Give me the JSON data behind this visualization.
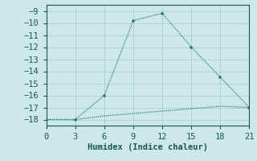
{
  "xlabel": "Humidex (Indice chaleur)",
  "line1_x": [
    0,
    3,
    6,
    9,
    12,
    15,
    18,
    21
  ],
  "line1_y": [
    -18,
    -18,
    -16,
    -9.8,
    -9.2,
    -12,
    -14.5,
    -17
  ],
  "line2_x": [
    0,
    3,
    6,
    9,
    12,
    15,
    18,
    21
  ],
  "line2_y": [
    -18.0,
    -18.0,
    -17.7,
    -17.5,
    -17.3,
    -17.1,
    -16.9,
    -17.0
  ],
  "line_color": "#2e7d6e",
  "bg_color": "#cce8e8",
  "grid_color_major": "#aacfcf",
  "grid_color_minor": "#c8e0e0",
  "text_color": "#1a5555",
  "xlim": [
    0,
    21
  ],
  "ylim": [
    -18.5,
    -8.5
  ],
  "xticks": [
    0,
    3,
    6,
    9,
    12,
    15,
    18,
    21
  ],
  "yticks": [
    -18,
    -17,
    -16,
    -15,
    -14,
    -13,
    -12,
    -11,
    -10,
    -9
  ],
  "markersize": 3.5,
  "linewidth": 0.9,
  "xlabel_fontsize": 7.5,
  "tick_fontsize": 7.5
}
